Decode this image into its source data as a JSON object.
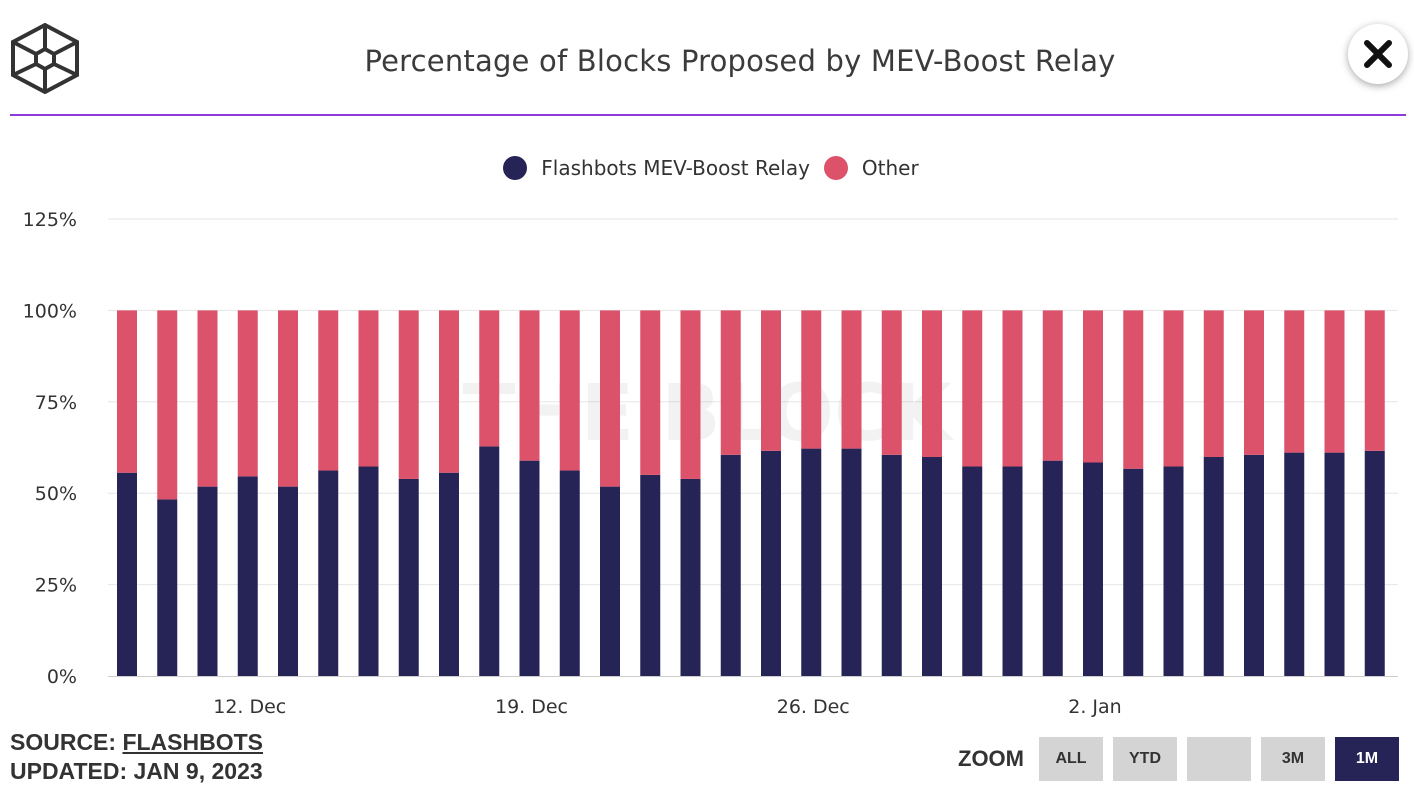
{
  "title": "Percentage of Blocks Proposed by MEV-Boost Relay",
  "icons": {
    "logo": "cube-logo-icon",
    "close": "close-icon"
  },
  "colors": {
    "accent": "#8e3ad8",
    "flashbots": "#262356",
    "other": "#dd526b"
  },
  "source": {
    "label": "SOURCE:",
    "value": "FLASHBOTS"
  },
  "updated": {
    "label": "UPDATED:",
    "value": "JAN 9, 2023"
  },
  "zoom": {
    "label": "ZOOM",
    "buttons": [
      "ALL",
      "YTD",
      "",
      "3M",
      "1M"
    ],
    "selected": "1M"
  },
  "chart_data": {
    "type": "bar",
    "stacked": true,
    "watermark": "THE BLOCK",
    "legend": "top-center",
    "grid": true,
    "ylim": [
      0,
      125
    ],
    "yticks": [
      "0%",
      "25%",
      "50%",
      "75%",
      "100%",
      "125%"
    ],
    "yticks_values": [
      0,
      25,
      50,
      75,
      100,
      125
    ],
    "xticks": [
      {
        "label": "12. Dec",
        "at": "2022-12-12"
      },
      {
        "label": "19. Dec",
        "at": "2022-12-19"
      },
      {
        "label": "26. Dec",
        "at": "2022-12-26"
      },
      {
        "label": "2. Jan",
        "at": "2023-01-02"
      }
    ],
    "categories": [
      "2022-12-09",
      "2022-12-10",
      "2022-12-11",
      "2022-12-12",
      "2022-12-13",
      "2022-12-14",
      "2022-12-15",
      "2022-12-16",
      "2022-12-17",
      "2022-12-18",
      "2022-12-19",
      "2022-12-20",
      "2022-12-21",
      "2022-12-22",
      "2022-12-23",
      "2022-12-24",
      "2022-12-25",
      "2022-12-26",
      "2022-12-27",
      "2022-12-28",
      "2022-12-29",
      "2022-12-30",
      "2022-12-31",
      "2023-01-01",
      "2023-01-02",
      "2023-01-03",
      "2023-01-04",
      "2023-01-05",
      "2023-01-06",
      "2023-01-07",
      "2023-01-08",
      "2023-01-09"
    ],
    "series": [
      {
        "name": "Flashbots MEV-Boost Relay",
        "color": "#262356",
        "values": [
          55.6,
          48.3,
          51.8,
          54.6,
          51.8,
          56.2,
          57.3,
          53.9,
          55.6,
          62.8,
          58.9,
          56.2,
          51.8,
          55.0,
          53.9,
          60.5,
          61.6,
          62.2,
          62.2,
          60.5,
          59.9,
          57.3,
          57.3,
          58.9,
          58.4,
          56.7,
          57.3,
          59.9,
          60.5,
          61.1,
          61.1,
          61.6
        ]
      },
      {
        "name": "Other",
        "color": "#dd526b",
        "values": [
          44.4,
          51.7,
          48.2,
          45.4,
          48.2,
          43.8,
          42.7,
          46.1,
          44.4,
          37.2,
          41.1,
          43.8,
          48.2,
          45.0,
          46.1,
          39.5,
          38.4,
          37.8,
          37.8,
          39.5,
          40.1,
          42.7,
          42.7,
          41.1,
          41.6,
          43.3,
          42.7,
          40.1,
          39.5,
          38.9,
          38.9,
          38.4
        ]
      }
    ]
  }
}
